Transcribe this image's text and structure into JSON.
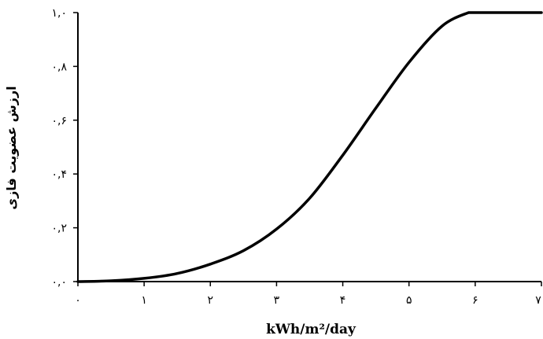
{
  "chart_data": {
    "type": "line",
    "title": "",
    "xlabel": "kWh/m²/day",
    "ylabel": "ارزش عضویت فازی",
    "xlim": [
      0,
      7
    ],
    "ylim": [
      0,
      1
    ],
    "grid": false,
    "x_ticks": [
      0,
      1,
      2,
      3,
      4,
      5,
      6,
      7
    ],
    "x_tick_labels": [
      "۰",
      "۱",
      "۲",
      "۳",
      "۴",
      "۵",
      "۶",
      "۷"
    ],
    "y_ticks": [
      0,
      0.2,
      0.4,
      0.6,
      0.8,
      1.0
    ],
    "y_tick_labels": [
      "۰,۰",
      "۰,۲",
      "۰,۴",
      "۰,۶",
      "۰,۸",
      "۱,۰"
    ],
    "series": [
      {
        "x": [
          0,
          0.5,
          1.0,
          1.5,
          2.0,
          2.5,
          3.0,
          3.5,
          4.0,
          4.5,
          5.0,
          5.5,
          5.9,
          6.0,
          7.0
        ],
        "y": [
          0,
          0.003,
          0.012,
          0.03,
          0.065,
          0.115,
          0.195,
          0.31,
          0.47,
          0.645,
          0.815,
          0.95,
          1.0,
          1.0,
          1.0
        ]
      }
    ]
  }
}
